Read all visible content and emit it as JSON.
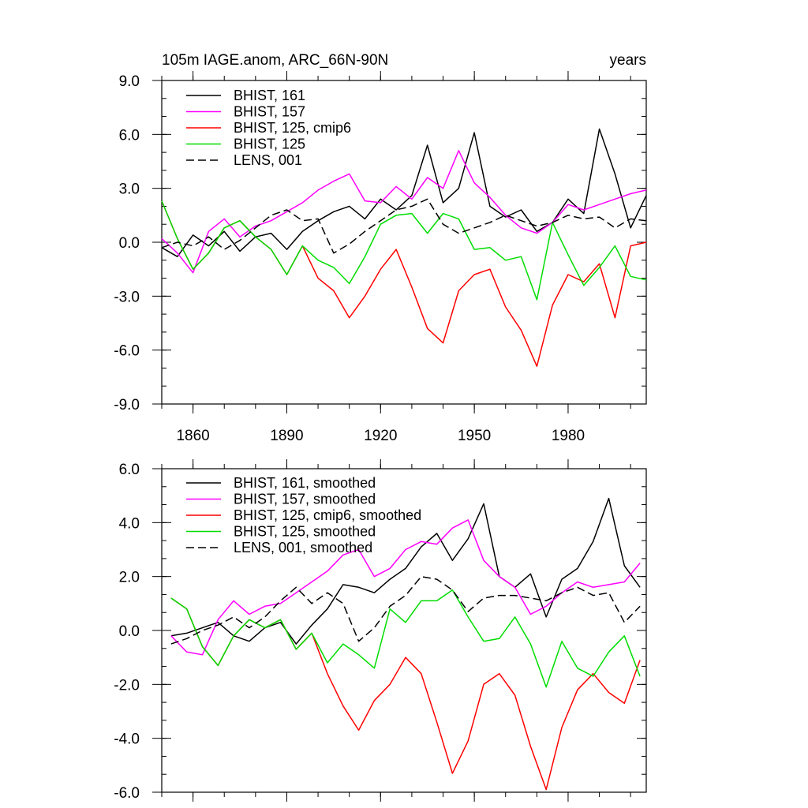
{
  "chart_data": [
    {
      "type": "line",
      "title": "105m IAGE.anom, ARC_66N-90N",
      "right_title": "years",
      "xlim": [
        1850,
        2005
      ],
      "ylim": [
        -9,
        9
      ],
      "yticks": [
        -9,
        -6,
        -3,
        0,
        3,
        6,
        9
      ],
      "yticklabels": [
        "-9.0",
        "-6.0",
        "-3.0",
        "0.0",
        "3.0",
        "6.0",
        "9.0"
      ],
      "xticks": [
        1860,
        1890,
        1920,
        1950,
        1980
      ],
      "xticklabels": [
        "1860",
        "1890",
        "1920",
        "1950",
        "1980"
      ],
      "legend_position": "top-left",
      "series": [
        {
          "name": "BHIST, 161",
          "color": "#000000",
          "dash": false,
          "x": [
            1850,
            1855,
            1860,
            1865,
            1870,
            1875,
            1880,
            1885,
            1890,
            1895,
            1900,
            1905,
            1910,
            1915,
            1920,
            1925,
            1930,
            1935,
            1940,
            1945,
            1950,
            1955,
            1960,
            1965,
            1970,
            1975,
            1980,
            1985,
            1990,
            1995,
            2000,
            2005
          ],
          "y": [
            -0.3,
            -0.8,
            0.4,
            -0.2,
            0.6,
            -0.5,
            0.3,
            0.5,
            -0.4,
            0.6,
            1.2,
            1.7,
            2.0,
            1.3,
            2.4,
            1.8,
            2.6,
            5.4,
            2.2,
            3.0,
            6.1,
            2.0,
            1.4,
            1.8,
            0.6,
            1.1,
            2.4,
            1.6,
            6.3,
            3.8,
            0.8,
            2.6
          ]
        },
        {
          "name": "BHIST, 157",
          "color": "#ff00ff",
          "dash": false,
          "x": [
            1850,
            1855,
            1860,
            1865,
            1870,
            1875,
            1880,
            1885,
            1890,
            1895,
            1900,
            1905,
            1910,
            1915,
            1920,
            1925,
            1930,
            1935,
            1940,
            1945,
            1950,
            1955,
            1960,
            1965,
            1970,
            1975,
            1980,
            1985,
            1990,
            1995,
            2000,
            2005
          ],
          "y": [
            0.2,
            -0.6,
            -1.7,
            0.6,
            1.3,
            0.3,
            0.9,
            1.2,
            1.7,
            2.2,
            2.9,
            3.4,
            3.8,
            2.3,
            2.2,
            3.1,
            2.4,
            3.6,
            3.0,
            5.1,
            3.3,
            2.5,
            1.5,
            0.8,
            0.5,
            1.1,
            2.1,
            1.8,
            2.1,
            2.4,
            2.7,
            2.9
          ]
        },
        {
          "name": "BHIST, 125, cmip6",
          "color": "#ff0000",
          "dash": false,
          "x": [
            1850,
            1855,
            1860,
            1865,
            1870,
            1875,
            1880,
            1885,
            1890,
            1895,
            1900,
            1905,
            1910,
            1915,
            1920,
            1925,
            1930,
            1935,
            1940,
            1945,
            1950,
            1955,
            1960,
            1965,
            1970,
            1975,
            1980,
            1985,
            1990,
            1995,
            2000,
            2005
          ],
          "y": [
            2.3,
            0.2,
            -1.5,
            -0.6,
            0.8,
            1.2,
            0.3,
            -0.4,
            -1.8,
            -0.2,
            -2.0,
            -2.7,
            -4.2,
            -3.0,
            -1.5,
            -0.4,
            -2.5,
            -4.8,
            -5.6,
            -2.7,
            -1.8,
            -1.5,
            -3.6,
            -4.9,
            -6.9,
            -3.5,
            -1.8,
            -2.2,
            -1.2,
            -4.2,
            -0.2,
            0.0
          ]
        },
        {
          "name": "BHIST, 125",
          "color": "#00dd00",
          "dash": false,
          "x": [
            1850,
            1855,
            1860,
            1865,
            1870,
            1875,
            1880,
            1885,
            1890,
            1895,
            1900,
            1905,
            1910,
            1915,
            1920,
            1925,
            1930,
            1935,
            1940,
            1945,
            1950,
            1955,
            1960,
            1965,
            1970,
            1975,
            1980,
            1985,
            1990,
            1995,
            2000,
            2005
          ],
          "y": [
            2.3,
            0.2,
            -1.5,
            -0.6,
            0.8,
            1.2,
            0.3,
            -0.4,
            -1.8,
            -0.2,
            -1.0,
            -1.4,
            -2.3,
            -0.8,
            1.0,
            1.5,
            1.6,
            0.5,
            1.6,
            1.3,
            -0.4,
            -0.3,
            -1.0,
            -0.8,
            -3.2,
            1.1,
            -0.7,
            -2.4,
            -1.4,
            -0.2,
            -1.9,
            -2.1
          ]
        },
        {
          "name": "LENS, 001",
          "color": "#000000",
          "dash": true,
          "x": [
            1850,
            1855,
            1860,
            1865,
            1870,
            1875,
            1880,
            1885,
            1890,
            1895,
            1900,
            1905,
            1910,
            1915,
            1920,
            1925,
            1930,
            1935,
            1940,
            1945,
            1950,
            1955,
            1960,
            1965,
            1970,
            1975,
            1980,
            1985,
            1990,
            1995,
            2000,
            2005
          ],
          "y": [
            -0.3,
            0.0,
            -0.2,
            0.3,
            -0.4,
            0.1,
            0.8,
            1.5,
            1.8,
            1.2,
            1.3,
            -0.6,
            -0.1,
            0.6,
            1.2,
            1.8,
            2.0,
            2.4,
            1.0,
            0.5,
            0.8,
            1.1,
            1.5,
            1.2,
            0.9,
            1.1,
            1.5,
            1.3,
            1.4,
            0.8,
            1.3,
            1.2
          ]
        }
      ]
    },
    {
      "type": "line",
      "title": "",
      "xlim": [
        1850,
        2005
      ],
      "ylim": [
        -6,
        6
      ],
      "yticks": [
        -6,
        -4,
        -2,
        0,
        2,
        4,
        6
      ],
      "yticklabels": [
        "-6.0",
        "-4.0",
        "-2.0",
        "0.0",
        "2.0",
        "4.0",
        "6.0"
      ],
      "xticks": [
        1860,
        1890,
        1920,
        1950,
        1980
      ],
      "legend_position": "top-left",
      "series": [
        {
          "name": "BHIST, 161, smoothed",
          "color": "#000000",
          "dash": false,
          "x": [
            1853,
            1858,
            1863,
            1868,
            1873,
            1878,
            1883,
            1888,
            1893,
            1898,
            1903,
            1908,
            1913,
            1918,
            1923,
            1928,
            1933,
            1938,
            1943,
            1948,
            1953,
            1958,
            1963,
            1968,
            1973,
            1978,
            1983,
            1988,
            1993,
            1998,
            2003
          ],
          "y": [
            -0.2,
            -0.1,
            0.1,
            0.3,
            -0.2,
            -0.4,
            0.1,
            0.3,
            -0.5,
            0.2,
            0.8,
            1.7,
            1.6,
            1.4,
            1.9,
            2.3,
            3.1,
            3.6,
            2.6,
            3.4,
            4.7,
            2.0,
            1.6,
            2.1,
            0.5,
            1.9,
            2.3,
            3.3,
            4.9,
            2.4,
            1.6
          ]
        },
        {
          "name": "BHIST, 157, smoothed",
          "color": "#ff00ff",
          "dash": false,
          "x": [
            1853,
            1858,
            1863,
            1868,
            1873,
            1878,
            1883,
            1888,
            1893,
            1898,
            1903,
            1908,
            1913,
            1918,
            1923,
            1928,
            1933,
            1938,
            1943,
            1948,
            1953,
            1958,
            1963,
            1968,
            1973,
            1978,
            1983,
            1988,
            1993,
            1998,
            2003
          ],
          "y": [
            -0.2,
            -0.8,
            -0.9,
            0.4,
            1.1,
            0.6,
            0.9,
            1.0,
            1.4,
            1.8,
            2.2,
            2.8,
            3.0,
            2.0,
            2.3,
            3.0,
            3.3,
            3.2,
            3.8,
            4.1,
            2.6,
            2.0,
            1.6,
            0.6,
            0.9,
            1.4,
            1.8,
            1.6,
            1.7,
            1.8,
            2.5
          ]
        },
        {
          "name": "BHIST, 125, cmip6, smoothed",
          "color": "#ff0000",
          "dash": false,
          "x": [
            1853,
            1858,
            1863,
            1868,
            1873,
            1878,
            1883,
            1888,
            1893,
            1898,
            1903,
            1908,
            1913,
            1918,
            1923,
            1928,
            1933,
            1938,
            1943,
            1948,
            1953,
            1958,
            1963,
            1968,
            1973,
            1978,
            1983,
            1988,
            1993,
            1998,
            2003
          ],
          "y": [
            1.2,
            0.8,
            -0.6,
            -1.3,
            -0.2,
            0.4,
            0.1,
            0.4,
            -0.7,
            -0.1,
            -1.6,
            -2.8,
            -3.7,
            -2.6,
            -2.0,
            -1.0,
            -1.6,
            -3.4,
            -5.3,
            -4.1,
            -2.0,
            -1.6,
            -2.4,
            -4.3,
            -5.9,
            -3.6,
            -2.2,
            -1.6,
            -2.3,
            -2.7,
            -1.1
          ]
        },
        {
          "name": "BHIST, 125, smoothed",
          "color": "#00dd00",
          "dash": false,
          "x": [
            1853,
            1858,
            1863,
            1868,
            1873,
            1878,
            1883,
            1888,
            1893,
            1898,
            1903,
            1908,
            1913,
            1918,
            1923,
            1928,
            1933,
            1938,
            1943,
            1948,
            1953,
            1958,
            1963,
            1968,
            1973,
            1978,
            1983,
            1988,
            1993,
            1998,
            2003
          ],
          "y": [
            1.2,
            0.8,
            -0.6,
            -1.3,
            -0.2,
            0.4,
            0.1,
            0.4,
            -0.7,
            -0.1,
            -1.2,
            -0.5,
            -0.9,
            -1.4,
            0.8,
            0.3,
            1.1,
            1.1,
            1.5,
            0.5,
            -0.4,
            -0.3,
            0.5,
            -0.5,
            -2.1,
            -0.4,
            -1.4,
            -1.7,
            -0.8,
            -0.2,
            -1.7
          ]
        },
        {
          "name": "LENS, 001, smoothed",
          "color": "#000000",
          "dash": true,
          "x": [
            1853,
            1858,
            1863,
            1868,
            1873,
            1878,
            1883,
            1888,
            1893,
            1898,
            1903,
            1908,
            1913,
            1918,
            1923,
            1928,
            1933,
            1938,
            1943,
            1948,
            1953,
            1958,
            1963,
            1968,
            1973,
            1978,
            1983,
            1988,
            1993,
            1998,
            2003
          ],
          "y": [
            -0.5,
            -0.3,
            0.0,
            0.2,
            0.5,
            0.1,
            0.5,
            1.1,
            1.6,
            1.0,
            1.4,
            1.0,
            -0.4,
            0.1,
            0.9,
            1.3,
            2.0,
            1.9,
            1.5,
            0.7,
            1.2,
            1.3,
            1.3,
            1.2,
            1.1,
            1.4,
            1.6,
            1.3,
            1.4,
            0.3,
            0.9
          ]
        }
      ]
    }
  ]
}
